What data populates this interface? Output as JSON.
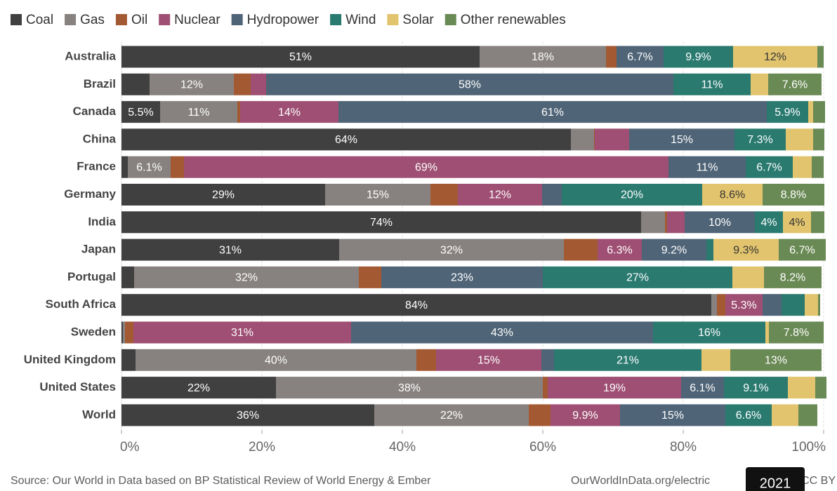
{
  "chart_data": {
    "type": "stacked_bar_horizontal",
    "categories": [
      "Australia",
      "Brazil",
      "Canada",
      "China",
      "France",
      "Germany",
      "India",
      "Japan",
      "Portugal",
      "South Africa",
      "Sweden",
      "United Kingdom",
      "United States",
      "World"
    ],
    "series": [
      {
        "name": "Coal",
        "color": "#404040",
        "values": [
          51,
          4,
          5.5,
          64,
          0.9,
          29,
          74,
          31,
          1.8,
          84,
          0.2,
          2,
          22,
          36
        ],
        "value_labels": [
          "51%",
          null,
          "5.5%",
          "64%",
          null,
          "29%",
          "74%",
          "31%",
          null,
          "84%",
          null,
          null,
          "22%",
          "36%"
        ]
      },
      {
        "name": "Gas",
        "color": "#878280",
        "values": [
          18,
          12,
          11,
          3.3,
          6.1,
          15,
          3.4,
          32,
          32,
          0.8,
          0.3,
          40,
          38,
          22
        ],
        "value_labels": [
          "18%",
          "12%",
          "11%",
          null,
          "6.1%",
          "15%",
          null,
          "32%",
          "32%",
          null,
          null,
          "40%",
          "38%",
          "22%"
        ]
      },
      {
        "name": "Oil",
        "color": "#a35a33",
        "values": [
          1.5,
          2.4,
          0.4,
          0.1,
          1.9,
          3.9,
          0.3,
          4.8,
          3.2,
          1.2,
          1.2,
          2.8,
          0.7,
          3.1
        ],
        "value_labels": [
          null,
          null,
          null,
          null,
          null,
          null,
          null,
          null,
          null,
          null,
          null,
          null,
          null,
          null
        ]
      },
      {
        "name": "Nuclear",
        "color": "#9e4f73",
        "values": [
          0,
          2.2,
          14,
          4.9,
          69,
          12,
          2.5,
          6.3,
          0,
          5.3,
          31,
          15,
          19,
          9.9
        ],
        "value_labels": [
          null,
          null,
          "14%",
          null,
          "69%",
          "12%",
          null,
          "6.3%",
          null,
          "5.3%",
          "31%",
          "15%",
          "19%",
          "9.9%"
        ]
      },
      {
        "name": "Hydropower",
        "color": "#4f6477",
        "values": [
          6.7,
          58,
          61,
          15,
          11,
          2.8,
          10,
          9.2,
          23,
          2.7,
          43,
          1.8,
          6.1,
          15
        ],
        "value_labels": [
          "6.7%",
          "58%",
          "61%",
          "15%",
          "11%",
          null,
          "10%",
          "9.2%",
          "23%",
          null,
          "43%",
          null,
          "6.1%",
          "15%"
        ]
      },
      {
        "name": "Wind",
        "color": "#2a7a70",
        "values": [
          9.9,
          11,
          5.9,
          7.3,
          6.7,
          20,
          4,
          1,
          27,
          3.3,
          16,
          21,
          9.1,
          6.6
        ],
        "value_labels": [
          "9.9%",
          "11%",
          "5.9%",
          "7.3%",
          "6.7%",
          "20%",
          "4%",
          null,
          "27%",
          null,
          "16%",
          "21%",
          "9.1%",
          "6.6%"
        ]
      },
      {
        "name": "Solar",
        "color": "#e2c46e",
        "values": [
          12,
          2.5,
          0.7,
          3.9,
          2.7,
          8.6,
          4,
          9.3,
          4.5,
          1.9,
          0.5,
          4.1,
          3.9,
          3.8
        ],
        "value_labels": [
          "12%",
          null,
          null,
          null,
          null,
          "8.6%",
          "4%",
          "9.3%",
          null,
          null,
          null,
          null,
          null,
          null
        ]
      },
      {
        "name": "Other renewables",
        "color": "#6a8a55",
        "values": [
          0.9,
          7.6,
          1.7,
          1.6,
          1.7,
          8.8,
          1.9,
          6.7,
          8.2,
          0.3,
          7.8,
          13,
          1.6,
          2.7
        ],
        "value_labels": [
          null,
          "7.6%",
          null,
          null,
          null,
          "8.8%",
          null,
          "6.7%",
          "8.2%",
          null,
          "7.8%",
          "13%",
          null,
          null
        ]
      }
    ],
    "xlim": [
      0,
      100
    ],
    "xticks": [
      {
        "value": 0,
        "label": "0%"
      },
      {
        "value": 20,
        "label": "20%"
      },
      {
        "value": 40,
        "label": "40%"
      },
      {
        "value": 60,
        "label": "60%"
      },
      {
        "value": 80,
        "label": "80%"
      },
      {
        "value": 100,
        "label": "100%"
      }
    ],
    "grid": true,
    "legend": "top-left",
    "source": "Source: Our World in Data based on BP Statistical Review of World Energy & Ember",
    "url": "OurWorldInData.org/electric",
    "license": "CC BY",
    "year_badge": "2021"
  }
}
